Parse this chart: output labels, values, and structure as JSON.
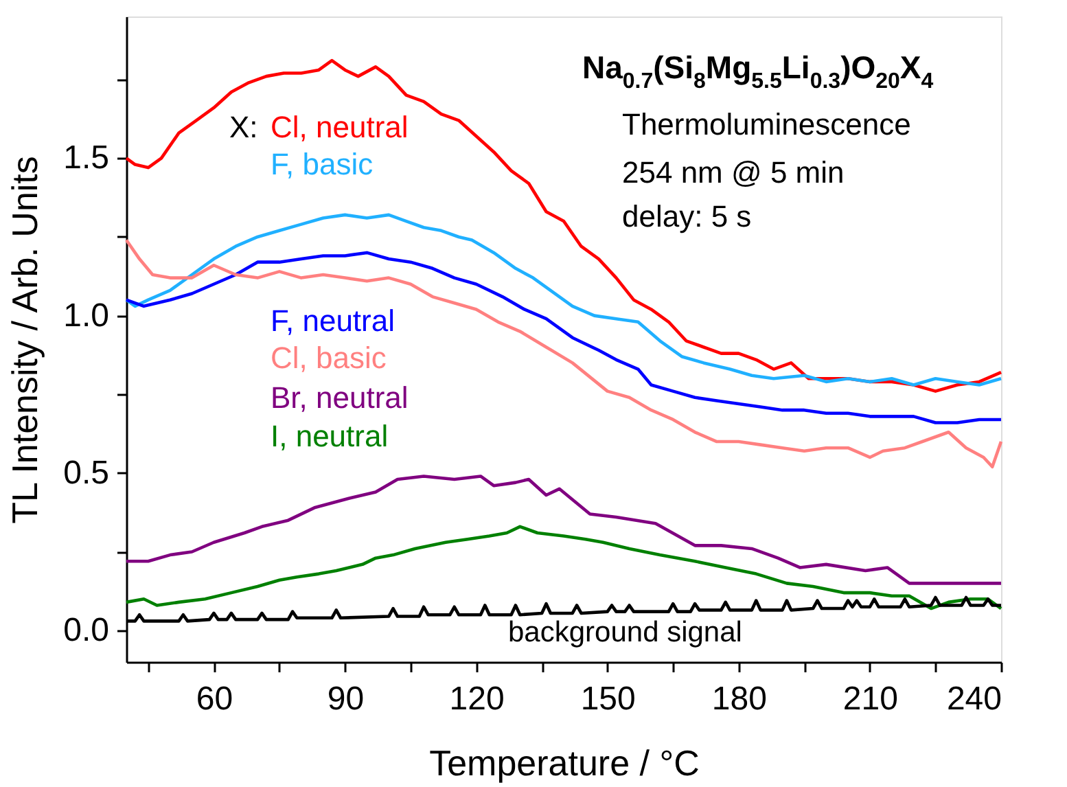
{
  "chart_data": {
    "type": "line",
    "title": "Na$_{0.7}$(Si$_{8}$Mg$_{5.5}$Li$_{0.3}$)O$_{20}$X$_{4}$",
    "xlabel": "Temperature / °C",
    "ylabel": "TL Intensity / Arb. Units",
    "annotations": [
      "X:",
      "Thermoluminescence",
      "254 nm @ 5 min",
      "delay: 5 s"
    ],
    "xlim": [
      40,
      240
    ],
    "ylim": [
      -0.1,
      1.95
    ],
    "xticks": [
      {
        "value": 45,
        "label": null
      },
      60,
      {
        "value": 75,
        "label": null
      },
      90,
      {
        "value": 105,
        "label": null
      },
      120,
      {
        "value": 135,
        "label": null
      },
      150,
      {
        "value": 165,
        "label": null
      },
      180,
      {
        "value": 195,
        "label": null
      },
      210,
      {
        "value": 225,
        "label": null
      },
      240
    ],
    "yticks": [
      {
        "value": 0,
        "label": "0.0"
      },
      {
        "value": 0.25,
        "label": null
      },
      {
        "value": 0.5,
        "label": "0.5"
      },
      {
        "value": 0.75,
        "label": null
      },
      {
        "value": 1,
        "label": "1.0"
      },
      {
        "value": 1.25,
        "label": null
      },
      {
        "value": 1.5,
        "label": "1.5"
      },
      {
        "value": 1.75,
        "label": null
      }
    ],
    "grid": false,
    "legend": false,
    "marker": "none",
    "line_style": "solid",
    "series": [
      {
        "name": "Cl, neutral",
        "color": "#ff0000",
        "x": [
          40,
          42,
          45,
          48,
          52,
          56,
          60,
          64,
          68,
          72,
          76,
          80,
          84,
          87,
          90,
          93,
          97,
          100,
          104,
          108,
          112,
          116,
          120,
          124,
          128,
          132,
          136,
          140,
          144,
          148,
          152,
          156,
          160,
          164,
          168,
          172,
          176,
          180,
          184,
          188,
          192,
          196,
          200,
          205,
          210,
          215,
          220,
          225,
          230,
          235,
          240
        ],
        "values": [
          1.5,
          1.48,
          1.47,
          1.5,
          1.58,
          1.62,
          1.66,
          1.71,
          1.74,
          1.76,
          1.77,
          1.77,
          1.78,
          1.81,
          1.78,
          1.76,
          1.79,
          1.76,
          1.7,
          1.68,
          1.64,
          1.62,
          1.57,
          1.52,
          1.46,
          1.42,
          1.33,
          1.3,
          1.22,
          1.18,
          1.12,
          1.05,
          1.02,
          0.98,
          0.92,
          0.9,
          0.88,
          0.88,
          0.86,
          0.83,
          0.85,
          0.8,
          0.8,
          0.8,
          0.79,
          0.79,
          0.78,
          0.76,
          0.78,
          0.79,
          0.82
        ]
      },
      {
        "name": "F, basic",
        "color": "#20b0ff",
        "x": [
          40,
          42,
          45,
          50,
          55,
          60,
          65,
          70,
          75,
          80,
          85,
          90,
          95,
          100,
          104,
          108,
          112,
          116,
          119,
          124,
          129,
          133,
          136,
          142,
          147,
          152,
          157,
          162,
          167,
          172,
          178,
          183,
          188,
          195,
          200,
          205,
          210,
          215,
          220,
          225,
          230,
          235,
          240
        ],
        "values": [
          1.05,
          1.03,
          1.05,
          1.08,
          1.13,
          1.18,
          1.22,
          1.25,
          1.27,
          1.29,
          1.31,
          1.32,
          1.31,
          1.32,
          1.3,
          1.28,
          1.27,
          1.25,
          1.24,
          1.2,
          1.15,
          1.12,
          1.09,
          1.03,
          1.0,
          0.99,
          0.98,
          0.92,
          0.87,
          0.85,
          0.83,
          0.81,
          0.8,
          0.81,
          0.79,
          0.8,
          0.79,
          0.8,
          0.78,
          0.8,
          0.79,
          0.78,
          0.8
        ]
      },
      {
        "name": "F, neutral",
        "color": "#0000ff",
        "x": [
          40,
          44,
          50,
          55,
          60,
          65,
          70,
          75,
          80,
          85,
          90,
          95,
          100,
          105,
          110,
          115,
          120,
          126,
          131,
          136,
          142,
          148,
          152,
          157,
          160,
          165,
          170,
          175,
          180,
          185,
          190,
          195,
          200,
          205,
          210,
          215,
          220,
          225,
          230,
          235,
          240
        ],
        "values": [
          1.05,
          1.03,
          1.05,
          1.07,
          1.1,
          1.13,
          1.17,
          1.17,
          1.18,
          1.19,
          1.19,
          1.2,
          1.18,
          1.17,
          1.15,
          1.12,
          1.1,
          1.06,
          1.02,
          0.99,
          0.93,
          0.89,
          0.86,
          0.83,
          0.78,
          0.76,
          0.74,
          0.73,
          0.72,
          0.71,
          0.7,
          0.7,
          0.69,
          0.69,
          0.68,
          0.68,
          0.68,
          0.66,
          0.66,
          0.67,
          0.67
        ]
      },
      {
        "name": "Cl, basic",
        "color": "#ff8080",
        "x": [
          40,
          43,
          46,
          50,
          55,
          60,
          65,
          70,
          75,
          80,
          85,
          90,
          95,
          100,
          105,
          110,
          115,
          120,
          125,
          130,
          136,
          142,
          150,
          155,
          160,
          165,
          170,
          175,
          180,
          185,
          190,
          195,
          200,
          205,
          210,
          213,
          218,
          222,
          228,
          232,
          236,
          238,
          240
        ],
        "values": [
          1.24,
          1.18,
          1.13,
          1.12,
          1.12,
          1.16,
          1.13,
          1.12,
          1.14,
          1.12,
          1.13,
          1.12,
          1.11,
          1.12,
          1.1,
          1.06,
          1.04,
          1.02,
          0.98,
          0.95,
          0.9,
          0.85,
          0.76,
          0.74,
          0.7,
          0.67,
          0.63,
          0.6,
          0.6,
          0.59,
          0.58,
          0.57,
          0.58,
          0.58,
          0.55,
          0.57,
          0.58,
          0.6,
          0.63,
          0.58,
          0.55,
          0.52,
          0.6
        ]
      },
      {
        "name": "Br, neutral",
        "color": "#800080",
        "x": [
          40,
          45,
          50,
          55,
          60,
          67,
          71,
          77,
          83,
          91,
          97,
          102,
          108,
          115,
          121,
          124,
          129,
          132,
          136,
          139,
          146,
          152,
          161,
          170,
          176,
          183,
          189,
          194,
          200,
          209,
          214,
          219,
          225,
          230,
          235,
          240
        ],
        "values": [
          0.22,
          0.22,
          0.24,
          0.25,
          0.28,
          0.31,
          0.33,
          0.35,
          0.39,
          0.42,
          0.44,
          0.48,
          0.49,
          0.48,
          0.49,
          0.46,
          0.47,
          0.48,
          0.43,
          0.45,
          0.37,
          0.36,
          0.34,
          0.27,
          0.27,
          0.26,
          0.23,
          0.2,
          0.21,
          0.19,
          0.2,
          0.15,
          0.15,
          0.15,
          0.15,
          0.15
        ]
      },
      {
        "name": "I, neutral",
        "color": "#008000",
        "x": [
          40,
          44,
          47,
          52,
          58,
          64,
          70,
          75,
          79,
          84,
          88,
          94,
          97,
          101,
          106,
          113,
          118,
          123,
          127,
          130,
          134,
          140,
          145,
          149,
          155,
          162,
          170,
          177,
          184,
          191,
          197,
          204,
          210,
          215,
          219,
          224,
          228,
          233,
          237,
          240
        ],
        "values": [
          0.09,
          0.1,
          0.08,
          0.09,
          0.1,
          0.12,
          0.14,
          0.16,
          0.17,
          0.18,
          0.19,
          0.21,
          0.23,
          0.24,
          0.26,
          0.28,
          0.29,
          0.3,
          0.31,
          0.33,
          0.31,
          0.3,
          0.29,
          0.28,
          0.26,
          0.24,
          0.22,
          0.2,
          0.18,
          0.15,
          0.14,
          0.12,
          0.12,
          0.11,
          0.11,
          0.07,
          0.09,
          0.1,
          0.1,
          0.07
        ]
      },
      {
        "name": "background signal",
        "color": "#000000",
        "x": [
          40,
          42,
          43,
          44,
          52,
          53,
          54,
          59,
          60,
          61,
          63,
          64,
          65,
          70,
          71,
          72,
          77,
          78,
          79,
          87,
          88,
          89,
          100,
          101,
          102,
          107,
          108,
          109,
          114,
          115,
          116,
          121,
          122,
          123,
          128,
          129,
          130,
          135,
          136,
          137,
          142,
          143,
          144,
          150,
          151,
          152,
          154,
          155,
          156,
          164,
          165,
          166,
          169,
          170,
          171,
          176,
          177,
          178,
          183,
          184,
          185,
          190,
          191,
          192,
          197,
          198,
          199,
          204,
          205,
          206,
          207,
          208,
          210,
          211,
          212,
          217,
          218,
          219,
          224,
          225,
          226,
          231,
          232,
          233,
          236,
          237,
          238,
          240
        ],
        "values": [
          0.03,
          0.03,
          0.05,
          0.03,
          0.03,
          0.05,
          0.03,
          0.035,
          0.055,
          0.035,
          0.035,
          0.055,
          0.035,
          0.035,
          0.055,
          0.035,
          0.035,
          0.06,
          0.04,
          0.04,
          0.065,
          0.04,
          0.045,
          0.07,
          0.045,
          0.045,
          0.075,
          0.05,
          0.05,
          0.075,
          0.05,
          0.05,
          0.08,
          0.05,
          0.05,
          0.08,
          0.05,
          0.055,
          0.085,
          0.055,
          0.055,
          0.08,
          0.055,
          0.06,
          0.08,
          0.06,
          0.06,
          0.08,
          0.06,
          0.06,
          0.085,
          0.06,
          0.06,
          0.085,
          0.065,
          0.065,
          0.09,
          0.065,
          0.065,
          0.095,
          0.065,
          0.065,
          0.095,
          0.065,
          0.07,
          0.095,
          0.07,
          0.07,
          0.095,
          0.075,
          0.095,
          0.075,
          0.075,
          0.1,
          0.075,
          0.075,
          0.1,
          0.075,
          0.08,
          0.105,
          0.08,
          0.08,
          0.105,
          0.08,
          0.08,
          0.1,
          0.08,
          0.08
        ]
      }
    ]
  }
}
